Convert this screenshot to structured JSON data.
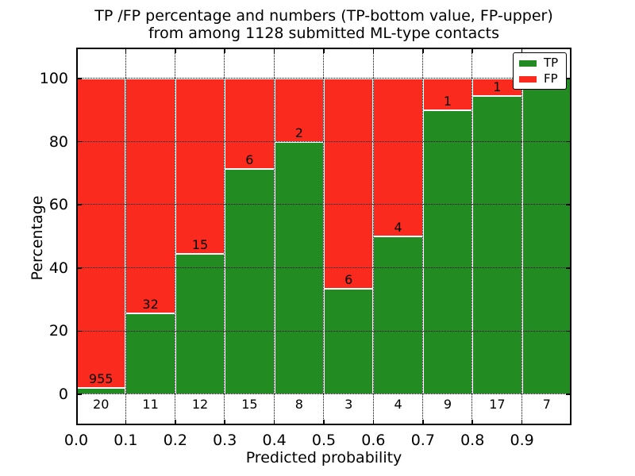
{
  "chart_data": {
    "type": "bar",
    "stacked": true,
    "title_lines": [
      "TP /FP percentage and numbers (TP-bottom value, FP-upper)",
      "from among 1128 submitted ML-type contacts"
    ],
    "xlabel": "Predicted probability",
    "ylabel": "Percentage",
    "x_tick_labels": [
      "0.0",
      "0.1",
      "0.2",
      "0.3",
      "0.4",
      "0.5",
      "0.6",
      "0.7",
      "0.8",
      "0.9"
    ],
    "y_ticks": [
      0,
      20,
      40,
      60,
      80,
      100
    ],
    "xlim": [
      0.0,
      1.0
    ],
    "ylim": [
      -10,
      110
    ],
    "grid": true,
    "grid_style": "dotted black, drawn over bars",
    "bar_edge_color": "#ffffff",
    "total_contacts": 1128,
    "legend": {
      "position": "upper right",
      "entries": [
        {
          "label": "TP",
          "color": "#228b22"
        },
        {
          "label": "FP",
          "color": "#fa2a1e"
        }
      ]
    },
    "categories": [
      "0.0-0.1",
      "0.1-0.2",
      "0.2-0.3",
      "0.3-0.4",
      "0.4-0.5",
      "0.5-0.6",
      "0.6-0.7",
      "0.7-0.8",
      "0.8-0.9",
      "0.9-1.0"
    ],
    "bins": [
      {
        "range": "0.0-0.1",
        "tp": 20,
        "fp": 955,
        "tp_pct": 2.1
      },
      {
        "range": "0.1-0.2",
        "tp": 11,
        "fp": 32,
        "tp_pct": 25.6
      },
      {
        "range": "0.2-0.3",
        "tp": 12,
        "fp": 15,
        "tp_pct": 44.4
      },
      {
        "range": "0.3-0.4",
        "tp": 15,
        "fp": 6,
        "tp_pct": 71.4
      },
      {
        "range": "0.4-0.5",
        "tp": 8,
        "fp": 2,
        "tp_pct": 80.0
      },
      {
        "range": "0.5-0.6",
        "tp": 3,
        "fp": 6,
        "tp_pct": 33.3
      },
      {
        "range": "0.6-0.7",
        "tp": 4,
        "fp": 4,
        "tp_pct": 50.0
      },
      {
        "range": "0.7-0.8",
        "tp": 9,
        "fp": 1,
        "tp_pct": 90.0
      },
      {
        "range": "0.8-0.9",
        "tp": 17,
        "fp": 1,
        "tp_pct": 94.4
      },
      {
        "range": "0.9-1.0",
        "tp": 7,
        "fp": 0,
        "tp_pct": 100.0
      }
    ],
    "series": [
      {
        "name": "TP",
        "counts": [
          20,
          11,
          12,
          15,
          8,
          3,
          4,
          9,
          17,
          7
        ]
      },
      {
        "name": "FP",
        "counts": [
          955,
          32,
          15,
          6,
          2,
          6,
          4,
          1,
          1,
          0
        ]
      }
    ],
    "note": "Each bar totals 100%; green TP share on bottom, red FP share on top; counts printed at the TP/FP boundary"
  }
}
